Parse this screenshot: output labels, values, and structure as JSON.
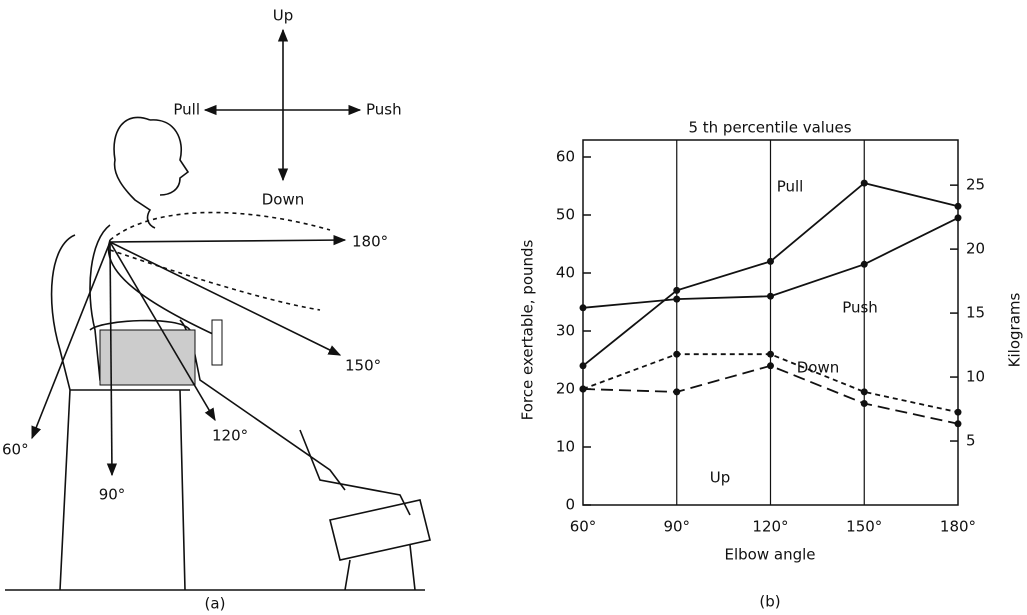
{
  "figure_a": {
    "up": "Up",
    "down": "Down",
    "pull": "Pull",
    "push": "Push",
    "angles": [
      "180°",
      "150°",
      "120°",
      "90°",
      "60°"
    ],
    "caption": "(a)"
  },
  "chart_data": {
    "type": "line",
    "title": "5 th percentile values",
    "xlabel": "Elbow angle",
    "ylabel": "Force exertable, pounds",
    "y2label": "Kilograms",
    "categories": [
      "60°",
      "90°",
      "120°",
      "150°",
      "180°"
    ],
    "series": [
      {
        "name": "Pull",
        "color": "#111111",
        "style": "solid",
        "values": [
          24,
          37,
          42,
          55.5,
          51.5
        ]
      },
      {
        "name": "Push",
        "color": "#111111",
        "style": "solid",
        "values": [
          34,
          35.5,
          36,
          41.5,
          49.5
        ]
      },
      {
        "name": "Down",
        "color": "#111111",
        "style": "dotted",
        "values": [
          20,
          26,
          26,
          19.5,
          16
        ]
      },
      {
        "name": "Up",
        "color": "#111111",
        "style": "dashed",
        "values": [
          20,
          19.5,
          24,
          17.5,
          14
        ]
      }
    ],
    "ylim": [
      0,
      60
    ],
    "yticks": [
      0,
      10,
      20,
      30,
      40,
      50,
      60
    ],
    "y2lim": [
      0,
      27.2
    ],
    "y2ticks": [
      5,
      10,
      15,
      20,
      25
    ],
    "grid": true,
    "caption": "(b)"
  }
}
